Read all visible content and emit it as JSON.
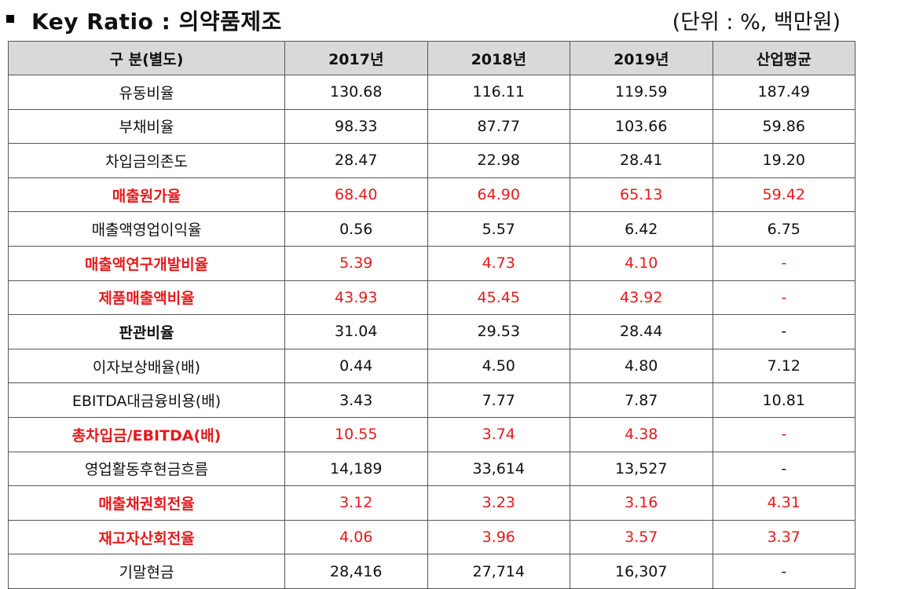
{
  "header": {
    "title": "Key Ratio : 의약품제조",
    "unit": "(단위 : %, 백만원)"
  },
  "table": {
    "columns": [
      "구 분(별도)",
      "2017년",
      "2018년",
      "2019년",
      "산업평균"
    ],
    "rows": [
      {
        "label": "유동비율",
        "values": [
          "130.68",
          "116.11",
          "119.59",
          "187.49"
        ],
        "red": false,
        "bold": false
      },
      {
        "label": "부채비율",
        "values": [
          "98.33",
          "87.77",
          "103.66",
          "59.86"
        ],
        "red": false,
        "bold": false
      },
      {
        "label": "차입금의존도",
        "values": [
          "28.47",
          "22.98",
          "28.41",
          "19.20"
        ],
        "red": false,
        "bold": false
      },
      {
        "label": "매출원가율",
        "values": [
          "68.40",
          "64.90",
          "65.13",
          "59.42"
        ],
        "red": true,
        "bold": true
      },
      {
        "label": "매출액영업이익율",
        "values": [
          "0.56",
          "5.57",
          "6.42",
          "6.75"
        ],
        "red": false,
        "bold": false
      },
      {
        "label": "매출액연구개발비율",
        "values": [
          "5.39",
          "4.73",
          "4.10",
          "-"
        ],
        "red": true,
        "bold": true
      },
      {
        "label": "제품매출액비율",
        "values": [
          "43.93",
          "45.45",
          "43.92",
          "-"
        ],
        "red": true,
        "bold": true
      },
      {
        "label": "판관비율",
        "values": [
          "31.04",
          "29.53",
          "28.44",
          "-"
        ],
        "red": false,
        "bold": true
      },
      {
        "label": "이자보상배율(배)",
        "values": [
          "0.44",
          "4.50",
          "4.80",
          "7.12"
        ],
        "red": false,
        "bold": false
      },
      {
        "label": "EBITDA대금융비용(배)",
        "values": [
          "3.43",
          "7.77",
          "7.87",
          "10.81"
        ],
        "red": false,
        "bold": false
      },
      {
        "label": "총차입금/EBITDA(배)",
        "values": [
          "10.55",
          "3.74",
          "4.38",
          "-"
        ],
        "red": true,
        "bold": true
      },
      {
        "label": "영업활동후현금흐름",
        "values": [
          "14,189",
          "33,614",
          "13,527",
          "-"
        ],
        "red": false,
        "bold": false
      },
      {
        "label": "매출채권회전율",
        "values": [
          "3.12",
          "3.23",
          "3.16",
          "4.31"
        ],
        "red": true,
        "bold": true
      },
      {
        "label": "재고자산회전율",
        "values": [
          "4.06",
          "3.96",
          "3.57",
          "3.37"
        ],
        "red": true,
        "bold": true
      },
      {
        "label": "기말현금",
        "values": [
          "28,416",
          "27,714",
          "16,307",
          "-"
        ],
        "red": false,
        "bold": false
      }
    ]
  },
  "colors": {
    "highlight": "#e8191b",
    "header_bg": "#d9d9d9",
    "border": "#555555"
  }
}
